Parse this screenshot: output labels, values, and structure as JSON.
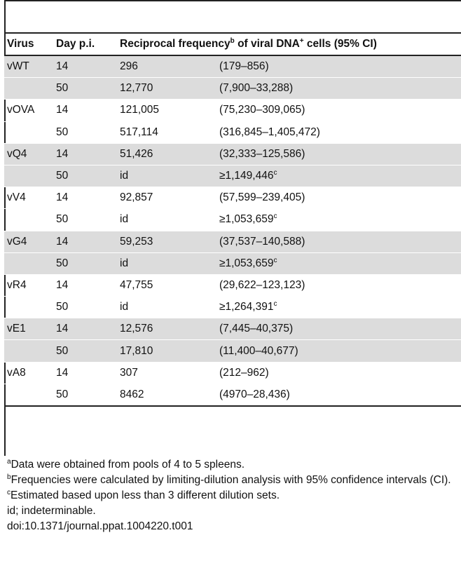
{
  "table": {
    "headers": {
      "virus": "Virus",
      "day": "Day p.i.",
      "freq_prefix": "Reciprocal frequency",
      "freq_sup": "b",
      "freq_suffix": " of viral DNA",
      "freq_sup2": "+",
      "freq_end": " cells (95% CI)"
    },
    "rows": [
      {
        "virus": "vWT",
        "day": "14",
        "freq": "296",
        "ci": "(179–856)",
        "ci_sup": ""
      },
      {
        "virus": "",
        "day": "50",
        "freq": "12,770",
        "ci": "(7,900–33,288)",
        "ci_sup": ""
      },
      {
        "virus": "vOVA",
        "day": "14",
        "freq": "121,005",
        "ci": "(75,230–309,065)",
        "ci_sup": ""
      },
      {
        "virus": "",
        "day": "50",
        "freq": "517,114",
        "ci": "(316,845–1,405,472)",
        "ci_sup": ""
      },
      {
        "virus": "vQ4",
        "day": "14",
        "freq": "51,426",
        "ci": "(32,333–125,586)",
        "ci_sup": ""
      },
      {
        "virus": "",
        "day": "50",
        "freq": "id",
        "ci": "≥1,149,446",
        "ci_sup": "c"
      },
      {
        "virus": "vV4",
        "day": "14",
        "freq": "92,857",
        "ci": "(57,599–239,405)",
        "ci_sup": ""
      },
      {
        "virus": "",
        "day": "50",
        "freq": "id",
        "ci": "≥1,053,659",
        "ci_sup": "c"
      },
      {
        "virus": "vG4",
        "day": "14",
        "freq": "59,253",
        "ci": "(37,537–140,588)",
        "ci_sup": ""
      },
      {
        "virus": "",
        "day": "50",
        "freq": "id",
        "ci": "≥1,053,659",
        "ci_sup": "c"
      },
      {
        "virus": "vR4",
        "day": "14",
        "freq": "47,755",
        "ci": "(29,622–123,123)",
        "ci_sup": ""
      },
      {
        "virus": "",
        "day": "50",
        "freq": "id",
        "ci": "≥1,264,391",
        "ci_sup": "c"
      },
      {
        "virus": "vE1",
        "day": "14",
        "freq": "12,576",
        "ci": "(7,445–40,375)",
        "ci_sup": ""
      },
      {
        "virus": "",
        "day": "50",
        "freq": "17,810",
        "ci": "(11,400–40,677)",
        "ci_sup": ""
      },
      {
        "virus": "vA8",
        "day": "14",
        "freq": "307",
        "ci": "(212–962)",
        "ci_sup": ""
      },
      {
        "virus": "",
        "day": "50",
        "freq": "8462",
        "ci": "(4970–28,436)",
        "ci_sup": ""
      }
    ]
  },
  "footnotes": [
    {
      "mark": "a",
      "text": "Data were obtained from pools of 4 to 5 spleens."
    },
    {
      "mark": "b",
      "text": "Frequencies were calculated by limiting-dilution analysis with 95% confidence intervals (CI)."
    },
    {
      "mark": "c",
      "text": "Estimated based upon less than 3 different dilution sets."
    },
    {
      "mark": "",
      "text": "id; indeterminable."
    },
    {
      "mark": "",
      "text": "doi:10.1371/journal.ppat.1004220.t001"
    }
  ],
  "colors": {
    "row_shade": "#dcdcdc",
    "rule": "#222222"
  }
}
